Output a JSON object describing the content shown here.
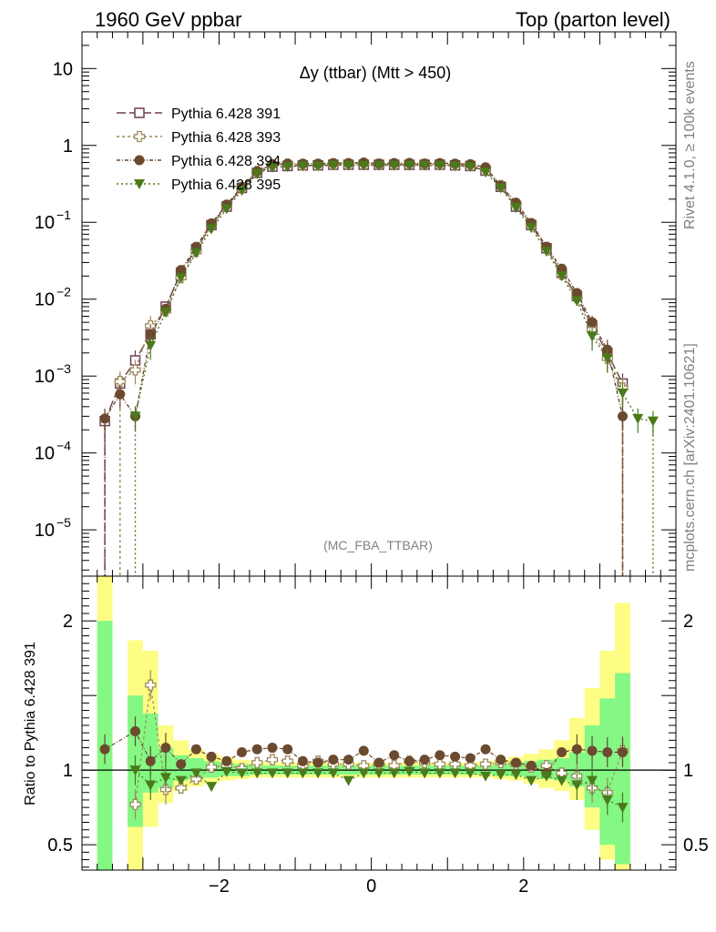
{
  "header": {
    "left": "1960 GeV ppbar",
    "right": "Top (parton level)"
  },
  "side_labels": {
    "rivet": "Rivet 4.1.0, ≥ 100k events",
    "mcplots": "mcplots.cern.ch [arXiv:2401.10621]"
  },
  "chart_data": {
    "type": "line",
    "title": "Δy (ttbar) (Mtt > 450)",
    "analysis": "(MC_FBA_TTBAR)",
    "xlabel": "",
    "ylabel": "",
    "ratio_ylabel": "Ratio to Pythia 6.428 391",
    "xlim": [
      -3.8,
      4.0
    ],
    "ylim": [
      2.5e-06,
      30
    ],
    "yscale": "log",
    "ratio_ylim": [
      0.33,
      2.3
    ],
    "x_ticks": [
      {
        "v": -2,
        "label": "−2"
      },
      {
        "v": 0,
        "label": "0"
      },
      {
        "v": 2,
        "label": "2"
      }
    ],
    "y_ticks": [
      {
        "v": 10,
        "base": "10",
        "exp": ""
      },
      {
        "v": 1,
        "base": "1",
        "exp": ""
      },
      {
        "v": 0.1,
        "base": "10",
        "exp": "−1"
      },
      {
        "v": 0.01,
        "base": "10",
        "exp": "−2"
      },
      {
        "v": 0.001,
        "base": "10",
        "exp": "−3"
      },
      {
        "v": 0.0001,
        "base": "10",
        "exp": "−4"
      },
      {
        "v": 1e-05,
        "base": "10",
        "exp": "−5"
      }
    ],
    "ratio_ticks": [
      {
        "v": 2,
        "label": "2"
      },
      {
        "v": 1,
        "label": "1"
      },
      {
        "v": 0.5,
        "label": "0.5"
      }
    ],
    "x": [
      -3.5,
      -3.3,
      -3.1,
      -2.9,
      -2.7,
      -2.5,
      -2.3,
      -2.1,
      -1.9,
      -1.7,
      -1.5,
      -1.3,
      -1.1,
      -0.9,
      -0.7,
      -0.5,
      -0.3,
      -0.1,
      0.1,
      0.3,
      0.5,
      0.7,
      0.9,
      1.1,
      1.3,
      1.5,
      1.7,
      1.9,
      2.1,
      2.3,
      2.5,
      2.7,
      2.9,
      3.1,
      3.3,
      3.5,
      3.7
    ],
    "series": [
      {
        "name": "Pythia 6.428 391",
        "color": "#6e3f4f",
        "marker": "open-square",
        "dash": "10,4",
        "values": [
          0.00026,
          0.0008,
          0.0016,
          0.0035,
          0.008,
          0.022,
          0.045,
          0.092,
          0.16,
          0.28,
          0.44,
          0.53,
          0.54,
          0.55,
          0.55,
          0.56,
          0.56,
          0.56,
          0.56,
          0.56,
          0.56,
          0.56,
          0.56,
          0.55,
          0.54,
          0.47,
          0.29,
          0.16,
          0.092,
          0.046,
          0.022,
          0.011,
          0.0045,
          0.002,
          0.0008,
          null,
          null
        ],
        "ratio": [
          null,
          null,
          null,
          null,
          null,
          null,
          null,
          null,
          null,
          null,
          null,
          null,
          null,
          null,
          null,
          null,
          null,
          null,
          null,
          null,
          null,
          null,
          null,
          null,
          null,
          null,
          null,
          null,
          null,
          null,
          null,
          null,
          null,
          null,
          null,
          null,
          null
        ]
      },
      {
        "name": "Pythia 6.428 393",
        "color": "#9c8a5a",
        "marker": "open-cross",
        "dash": "3,3",
        "values": [
          null,
          0.00085,
          0.0012,
          0.0045,
          0.007,
          0.019,
          0.042,
          0.094,
          0.165,
          0.28,
          0.46,
          0.56,
          0.57,
          0.56,
          0.56,
          0.57,
          0.57,
          0.57,
          0.57,
          0.57,
          0.58,
          0.57,
          0.57,
          0.56,
          0.55,
          0.48,
          0.3,
          0.17,
          0.095,
          0.047,
          0.021,
          0.0105,
          0.004,
          0.0017,
          0.0007,
          null,
          null
        ],
        "ratio": [
          null,
          null,
          0.77,
          1.57,
          0.87,
          0.88,
          0.94,
          1.02,
          1.03,
          1.01,
          1.05,
          1.07,
          1.06,
          1.03,
          1.06,
          1.04,
          1.04,
          1.03,
          1.04,
          1.03,
          1.06,
          1.05,
          1.04,
          1.04,
          1.03,
          1.04,
          1.05,
          1.04,
          1.02,
          1.03,
          0.98,
          0.96,
          0.88,
          0.85,
          1.13,
          null,
          null
        ]
      },
      {
        "name": "Pythia 6.428 394",
        "color": "#6b4a2e",
        "marker": "filled-circle",
        "dash": "4,2,1,2",
        "values": [
          0.00028,
          0.00058,
          0.0003,
          0.0035,
          0.0075,
          0.024,
          0.048,
          0.097,
          0.17,
          0.29,
          0.46,
          0.57,
          0.58,
          0.58,
          0.58,
          0.59,
          0.59,
          0.6,
          0.58,
          0.59,
          0.59,
          0.58,
          0.59,
          0.58,
          0.57,
          0.52,
          0.3,
          0.18,
          0.098,
          0.048,
          0.025,
          0.012,
          0.005,
          0.0022,
          0.0003,
          null,
          null
        ],
        "ratio": [
          1.14,
          null,
          1.26,
          1.06,
          1.15,
          1.04,
          1.14,
          1.09,
          1.06,
          1.12,
          1.14,
          1.15,
          1.14,
          1.06,
          1.05,
          1.07,
          1.07,
          1.13,
          1.05,
          1.1,
          1.06,
          1.07,
          1.1,
          1.09,
          1.08,
          1.14,
          1.07,
          1.05,
          1.03,
          0.98,
          1.12,
          1.14,
          1.13,
          1.12,
          1.12,
          null,
          null
        ]
      },
      {
        "name": "Pythia 6.428 395",
        "color": "#4a7a1c",
        "marker": "filled-triangle-down",
        "dash": "2,3",
        "values": [
          null,
          null,
          0.0003,
          0.0025,
          0.0068,
          0.019,
          0.04,
          0.082,
          0.15,
          0.26,
          0.43,
          0.52,
          0.53,
          0.54,
          0.54,
          0.55,
          0.55,
          0.55,
          0.55,
          0.55,
          0.55,
          0.55,
          0.55,
          0.54,
          0.53,
          0.45,
          0.28,
          0.155,
          0.085,
          0.042,
          0.02,
          0.0095,
          0.0033,
          0.0017,
          0.0006,
          0.00028,
          0.00026
        ],
        "ratio": [
          null,
          null,
          1.0,
          0.9,
          0.95,
          0.93,
          0.98,
          0.89,
          0.99,
          0.98,
          0.98,
          0.98,
          0.98,
          0.98,
          0.98,
          0.98,
          0.93,
          0.98,
          0.98,
          0.98,
          0.99,
          0.98,
          0.98,
          0.98,
          0.98,
          0.96,
          0.97,
          0.97,
          0.93,
          0.96,
          0.93,
          0.9,
          0.93,
          0.8,
          0.75,
          null,
          null
        ]
      }
    ],
    "ratio_bands": {
      "green": {
        "color": "#84f784",
        "lo": [
          0.33,
          0.33,
          0.62,
          0.85,
          0.88,
          0.93,
          0.94,
          0.95,
          0.96,
          0.96,
          0.97,
          0.97,
          0.97,
          0.97,
          0.97,
          0.97,
          0.97,
          0.97,
          0.97,
          0.97,
          0.97,
          0.97,
          0.97,
          0.97,
          0.97,
          0.97,
          0.96,
          0.96,
          0.95,
          0.94,
          0.93,
          0.89,
          0.75,
          0.5,
          0.37,
          null,
          null
        ],
        "hi": [
          2.0,
          null,
          1.5,
          1.38,
          1.15,
          1.1,
          1.08,
          1.06,
          1.05,
          1.04,
          1.03,
          1.03,
          1.03,
          1.03,
          1.03,
          1.03,
          1.03,
          1.03,
          1.03,
          1.03,
          1.03,
          1.03,
          1.03,
          1.03,
          1.03,
          1.03,
          1.04,
          1.05,
          1.06,
          1.07,
          1.08,
          1.12,
          1.3,
          1.48,
          1.65,
          null,
          null
        ]
      },
      "yellow": {
        "color": "#fdfd84",
        "lo": [
          0.33,
          0.33,
          0.33,
          0.62,
          0.78,
          0.86,
          0.89,
          0.91,
          0.93,
          0.94,
          0.95,
          0.95,
          0.95,
          0.95,
          0.95,
          0.95,
          0.95,
          0.95,
          0.95,
          0.95,
          0.95,
          0.95,
          0.95,
          0.95,
          0.95,
          0.95,
          0.94,
          0.93,
          0.91,
          0.88,
          0.86,
          0.8,
          0.6,
          0.4,
          0.33,
          null,
          null
        ],
        "hi": [
          2.3,
          null,
          1.87,
          1.8,
          1.3,
          1.2,
          1.14,
          1.11,
          1.09,
          1.07,
          1.06,
          1.05,
          1.05,
          1.05,
          1.05,
          1.05,
          1.05,
          1.05,
          1.05,
          1.05,
          1.05,
          1.05,
          1.05,
          1.05,
          1.05,
          1.06,
          1.07,
          1.09,
          1.11,
          1.14,
          1.2,
          1.35,
          1.55,
          1.8,
          2.12,
          null,
          null
        ]
      }
    }
  }
}
